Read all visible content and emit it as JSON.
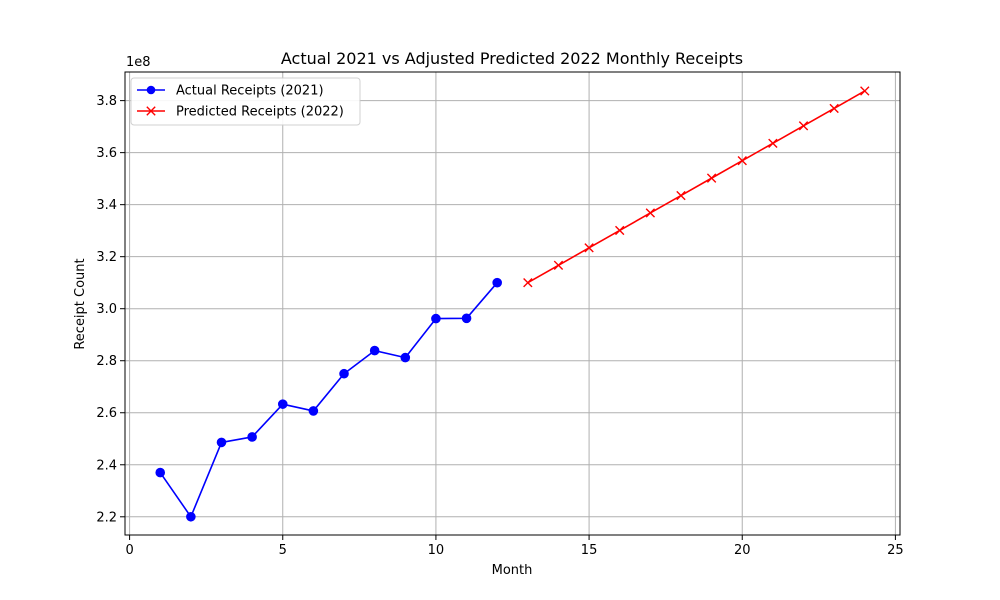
{
  "chart_data": {
    "type": "line",
    "title": "Actual 2021 vs Adjusted Predicted 2022 Monthly Receipts",
    "xlabel": "Month",
    "ylabel": "Receipt Count",
    "y_offset_label": "1e8",
    "xlim": [
      -0.15,
      25.15
    ],
    "ylim": [
      2.13,
      3.91
    ],
    "x_ticks": [
      0,
      5,
      10,
      15,
      20,
      25
    ],
    "x_tick_labels": [
      "0",
      "5",
      "10",
      "15",
      "20",
      "25"
    ],
    "y_ticks": [
      2.2,
      2.4,
      2.6,
      2.8,
      3.0,
      3.2,
      3.4,
      3.6,
      3.8
    ],
    "y_tick_labels": [
      "2.2",
      "2.4",
      "2.6",
      "2.8",
      "3.0",
      "3.2",
      "3.4",
      "3.6",
      "3.8"
    ],
    "grid": true,
    "legend_position": "top-left",
    "series": [
      {
        "name": "Actual Receipts (2021)",
        "color": "#0000ff",
        "marker": "circle",
        "x": [
          1,
          2,
          3,
          4,
          5,
          6,
          7,
          8,
          9,
          10,
          11,
          12
        ],
        "values": [
          2.37,
          2.2,
          2.486,
          2.507,
          2.633,
          2.607,
          2.75,
          2.839,
          2.812,
          2.962,
          2.963,
          3.1
        ]
      },
      {
        "name": "Predicted Receipts (2022)",
        "color": "#ff0000",
        "marker": "x",
        "x": [
          13,
          14,
          15,
          16,
          17,
          18,
          19,
          20,
          21,
          22,
          23,
          24
        ],
        "values": [
          3.1,
          3.167,
          3.234,
          3.301,
          3.368,
          3.435,
          3.502,
          3.569,
          3.636,
          3.703,
          3.77,
          3.837
        ]
      }
    ]
  }
}
